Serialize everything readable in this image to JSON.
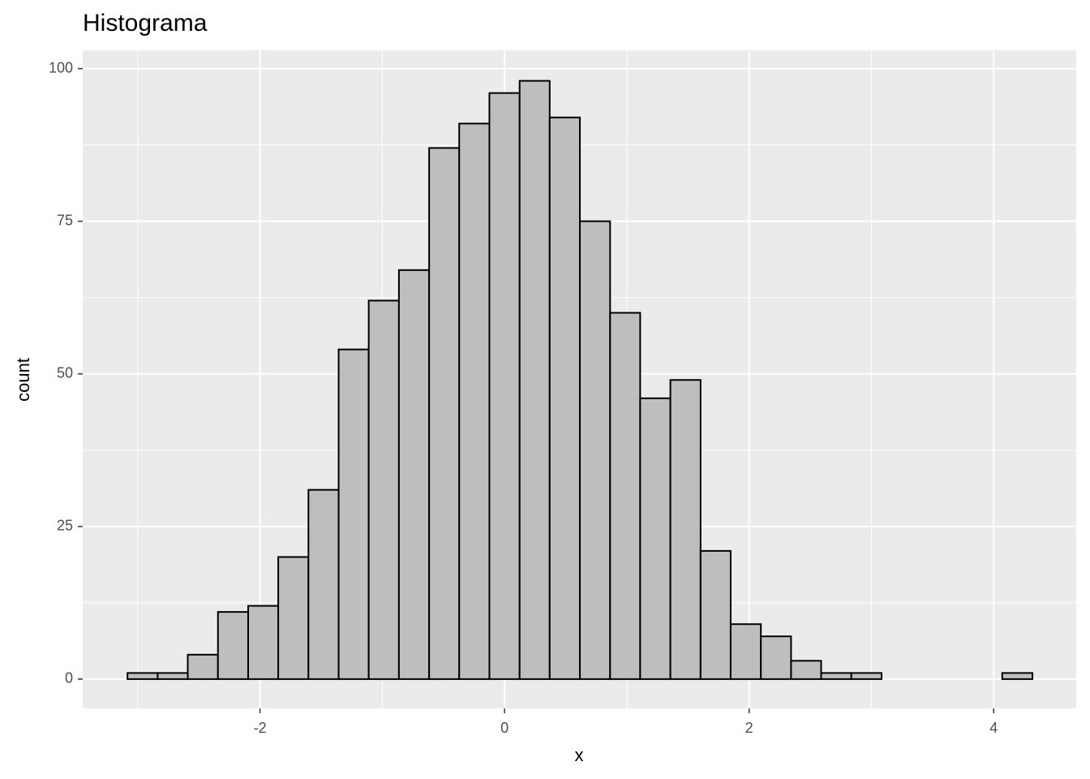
{
  "chart_data": {
    "type": "histogram",
    "title": "Histograma",
    "x_label": "x",
    "y_label": "count",
    "bins": [
      -3.084,
      -2.837,
      -2.591,
      -2.344,
      -2.097,
      -1.851,
      -1.604,
      -1.357,
      -1.111,
      -0.864,
      -0.617,
      -0.371,
      -0.124,
      0.123,
      0.369,
      0.616,
      0.863,
      1.109,
      1.356,
      1.603,
      1.849,
      2.096,
      2.343,
      2.589,
      2.836,
      3.083,
      3.329,
      3.576,
      3.823,
      4.07,
      4.317
    ],
    "values": [
      1,
      1,
      4,
      11,
      12,
      20,
      31,
      54,
      62,
      67,
      87,
      91,
      96,
      98,
      92,
      75,
      60,
      46,
      49,
      21,
      9,
      7,
      3,
      1,
      1,
      0,
      0,
      0,
      0,
      1
    ],
    "color": "#bebebe",
    "edgecolor": "#000000",
    "xlim": [
      -3.45,
      4.675
    ],
    "xticks": [
      -2,
      0,
      2,
      4
    ],
    "xminor_ticks": [
      -3,
      -1,
      1,
      3
    ],
    "ylim": [
      -4.8,
      103
    ],
    "yticks": [
      0,
      25,
      50,
      75,
      100
    ],
    "yminor_ticks": [
      12.5,
      37.5,
      62.5,
      87.5
    ],
    "grid": true
  }
}
